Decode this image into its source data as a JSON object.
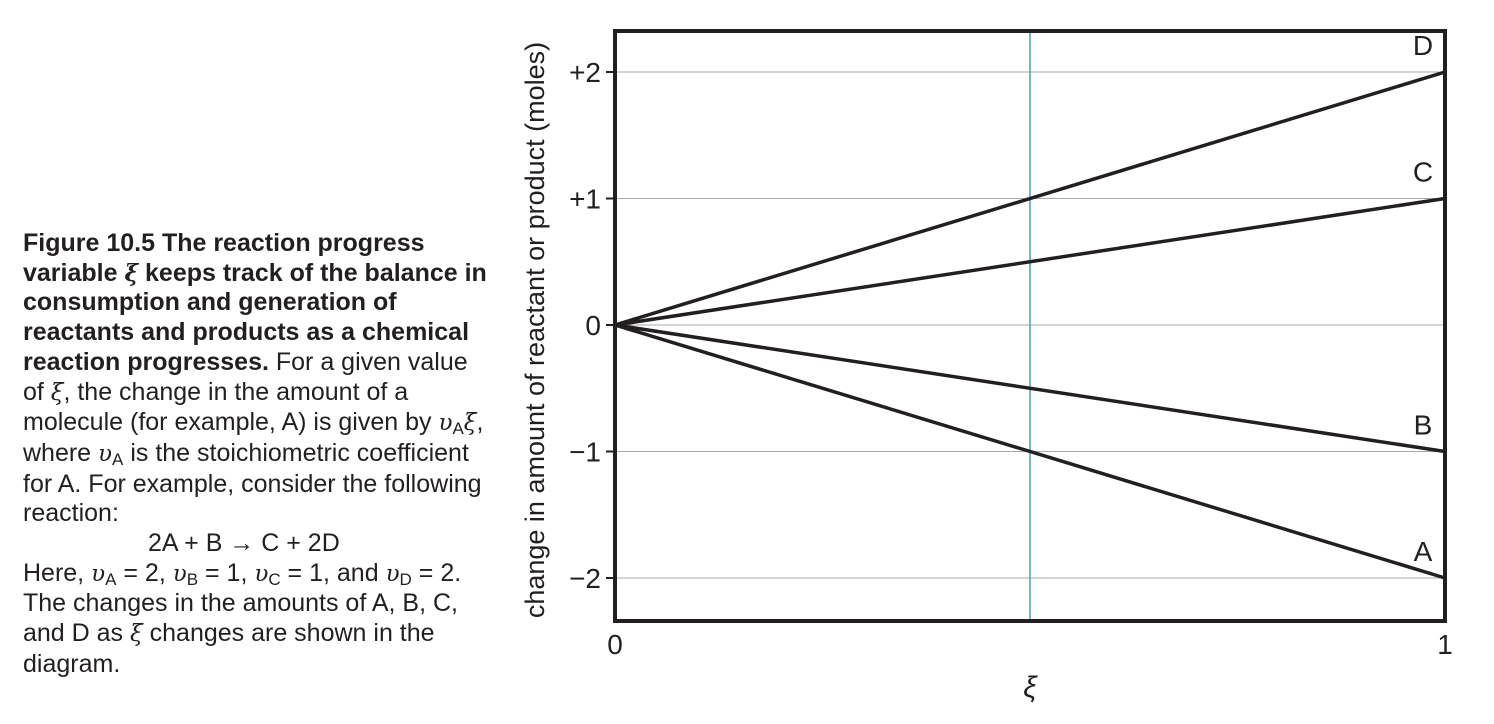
{
  "caption": {
    "title": "Figure 10.5 The reaction progress variable ξ keeps track of the balance in consumption and generation of reactants and products as a chemical reaction progresses.",
    "p1": " For a given value of ξ, the change in the amount of a molecule (for example, A) is given by υAξ, where υA is the stoichiometric coefficient for A. For example, consider the following reaction:",
    "equation": "2A + B → C + 2D",
    "p2": "Here, υA = 2, υB = 1, υC = 1, and υD = 2. The changes in the amounts of A, B, C, and D as ξ changes are shown in the diagram."
  },
  "chart_data": {
    "type": "line",
    "ylabel": "change in amount of reactant or product (moles)",
    "xlabel": "ξ",
    "xlim": [
      0,
      1
    ],
    "ylim": [
      -2.33,
      2.33
    ],
    "x_ticks": [
      {
        "value": 0,
        "label": "0"
      },
      {
        "value": 1,
        "label": "1"
      }
    ],
    "y_ticks": [
      {
        "value": 2,
        "label": "+2"
      },
      {
        "value": 1,
        "label": "+1"
      },
      {
        "value": 0,
        "label": "0"
      },
      {
        "value": -1,
        "label": "−1"
      },
      {
        "value": -2,
        "label": "−2"
      }
    ],
    "grid": true,
    "vertical_marker": {
      "x": 0.5,
      "color": "#4a9cc4"
    },
    "series": [
      {
        "name": "D",
        "x": [
          0,
          1
        ],
        "y": [
          0,
          2
        ]
      },
      {
        "name": "C",
        "x": [
          0,
          1
        ],
        "y": [
          0,
          1
        ]
      },
      {
        "name": "B",
        "x": [
          0,
          1
        ],
        "y": [
          0,
          -1
        ]
      },
      {
        "name": "A",
        "x": [
          0,
          1
        ],
        "y": [
          0,
          -2
        ]
      }
    ],
    "colors": {
      "line": "#231f20",
      "grid": "#a7a9ac"
    }
  }
}
